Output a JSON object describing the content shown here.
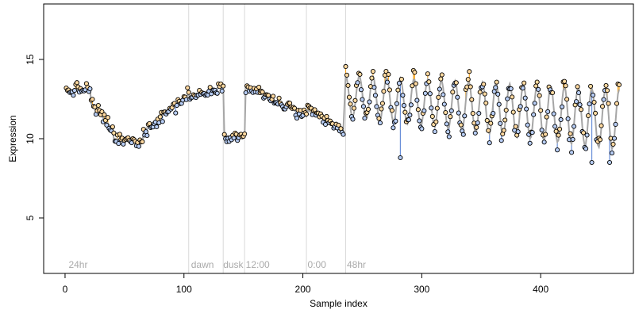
{
  "chart_data": {
    "type": "scatter",
    "title": "",
    "xlabel": "Sample index",
    "ylabel": "Expression",
    "xlim": [
      -18,
      478
    ],
    "ylim": [
      1.5,
      18.5
    ],
    "x_ticks": [
      0,
      100,
      200,
      300,
      400
    ],
    "y_ticks": [
      5,
      10,
      15
    ],
    "grid": false,
    "legend": "none",
    "colors": {
      "fitted_line": "#a6a6a6",
      "residual_above": "#f5a623",
      "residual_below": "#6a8fd8",
      "point_above": "#ffd9a0",
      "point_below": "#b7cdf5",
      "point_edge": "#000000",
      "phase_line": "#d9d9d9",
      "phase_text": "#aaaaaa"
    },
    "phase_markers": [
      {
        "x": 104,
        "label": ""
      },
      {
        "x": 133,
        "label": ""
      },
      {
        "x": 151,
        "label": ""
      },
      {
        "x": 203,
        "label": ""
      },
      {
        "x": 236,
        "label": ""
      }
    ],
    "phase_labels": [
      {
        "x": 3,
        "label": "24hr"
      },
      {
        "x": 106,
        "label": "dawn"
      },
      {
        "x": 133,
        "label": "dusk"
      },
      {
        "x": 152,
        "label": "12:00"
      },
      {
        "x": 204,
        "label": "0:00"
      },
      {
        "x": 237,
        "label": "48hr"
      }
    ],
    "segments": [
      {
        "name": "",
        "kind": "linear",
        "x": [
          1,
          21
        ],
        "y": [
          13.0,
          13.2
        ],
        "noise": 0.3
      },
      {
        "name": "",
        "kind": "linear",
        "x": [
          22,
          40
        ],
        "y": [
          12.2,
          10.6
        ],
        "noise": 0.35
      },
      {
        "name": "",
        "kind": "linear",
        "x": [
          41,
          65
        ],
        "y": [
          10.0,
          9.7
        ],
        "noise": 0.3
      },
      {
        "name": "",
        "kind": "linear",
        "x": [
          66,
          104
        ],
        "y": [
          10.5,
          12.8
        ],
        "noise": 0.35
      },
      {
        "name": "",
        "kind": "linear",
        "x": [
          105,
          133
        ],
        "y": [
          12.6,
          13.3
        ],
        "noise": 0.2
      },
      {
        "name": "",
        "kind": "linear",
        "x": [
          134,
          151
        ],
        "y": [
          10.2,
          10.1
        ],
        "noise": 0.25
      },
      {
        "name": "",
        "kind": "linear",
        "x": [
          152,
          203
        ],
        "y": [
          13.3,
          11.4
        ],
        "noise": 0.3
      },
      {
        "name": "",
        "kind": "linear",
        "x": [
          204,
          234
        ],
        "y": [
          11.8,
          10.5
        ],
        "noise": 0.3
      },
      {
        "name": "",
        "kind": "oscillation",
        "x": [
          236,
          466
        ],
        "mean_start": 12.7,
        "mean_end": 11.2,
        "amp_start": 1.3,
        "amp_end": 1.9,
        "period": 11.5,
        "noise": 0.45
      }
    ],
    "outliers": [
      {
        "x": 282,
        "y": 8.8
      },
      {
        "x": 443,
        "y": 8.5
      },
      {
        "x": 458,
        "y": 8.5
      }
    ]
  }
}
